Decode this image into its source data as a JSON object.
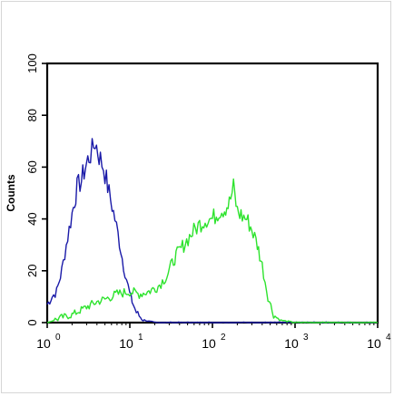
{
  "chart_data": {
    "type": "line",
    "title": "",
    "xlabel": "",
    "ylabel": "Counts",
    "xscale": "log",
    "xlim": [
      1,
      10000
    ],
    "ylim": [
      0,
      100
    ],
    "grid": false,
    "legend": "none",
    "x_ticks": [
      {
        "value": 1,
        "base": "10",
        "exp": "0"
      },
      {
        "value": 10,
        "base": "10",
        "exp": "1"
      },
      {
        "value": 100,
        "base": "10",
        "exp": "2"
      },
      {
        "value": 1000,
        "base": "10",
        "exp": "3"
      },
      {
        "value": 10000,
        "base": "10",
        "exp": "4"
      }
    ],
    "y_ticks": [
      "0",
      "20",
      "40",
      "60",
      "80",
      "100"
    ],
    "series": [
      {
        "color": "#1a1aa8",
        "x": [
          1.0,
          1.15,
          1.3,
          1.5,
          1.7,
          2.0,
          2.3,
          2.6,
          2.9,
          3.2,
          3.5,
          3.8,
          4.1,
          4.4,
          4.8,
          5.2,
          5.6,
          6.1,
          6.6,
          7.2,
          7.8,
          8.4,
          9.1,
          10.0,
          11.0,
          12.0,
          13.5,
          15.0,
          17.0,
          20.0,
          30.0,
          100.0,
          1000.0,
          10000.0
        ],
        "y": [
          7,
          10,
          12,
          20,
          30,
          42,
          52,
          55,
          60,
          64,
          66,
          70,
          66,
          63,
          60,
          55,
          50,
          45,
          40,
          34,
          28,
          22,
          17,
          11,
          7,
          4,
          2,
          1,
          0.5,
          0,
          0,
          0,
          0,
          0
        ]
      },
      {
        "color": "#2ee32e",
        "x": [
          1.0,
          1.5,
          2.0,
          3.0,
          4.0,
          5.0,
          7.0,
          10.0,
          13.0,
          17.0,
          22.0,
          28.0,
          35.0,
          45.0,
          55.0,
          70.0,
          85.0,
          100.0,
          120.0,
          140.0,
          160.0,
          180.0,
          200.0,
          230.0,
          260.0,
          300.0,
          350.0,
          400.0,
          470.0,
          550.0,
          650.0,
          800.0,
          1000.0,
          2000.0,
          5000.0,
          10000.0
        ],
        "y": [
          0,
          2,
          3,
          6,
          8,
          9,
          11,
          12,
          11,
          12,
          14,
          18,
          25,
          30,
          34,
          38,
          40,
          40,
          43,
          44,
          46,
          52,
          43,
          41,
          40,
          36,
          30,
          22,
          10,
          3,
          1,
          0.5,
          0,
          0,
          0,
          0
        ]
      }
    ]
  }
}
